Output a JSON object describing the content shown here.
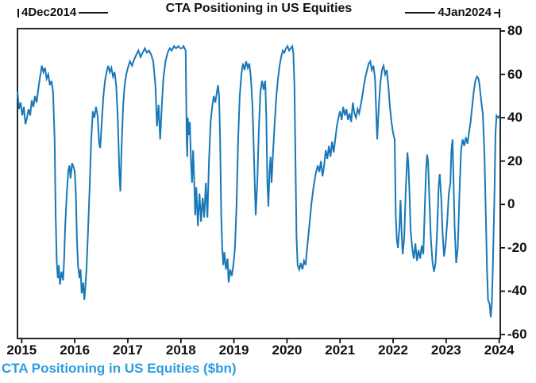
{
  "title": "CTA Positioning in US Equities",
  "markers": {
    "start": "4Dec2014",
    "end": "4Jan2024"
  },
  "caption": {
    "text": "CTA Positioning in US Equities ($bn)"
  },
  "colors": {
    "line": "#1878b8",
    "caption": "#2b9de0",
    "axis": "#111111"
  },
  "chart_data": {
    "type": "line",
    "title": "CTA Positioning in US Equities",
    "series_label": "CTA Positioning in US Equities ($bn)",
    "x_start_label": "4Dec2014",
    "x_end_label": "4Jan2024",
    "xlabel": "",
    "ylabel": "",
    "xlim": [
      2014.92,
      2024.02
    ],
    "ylim": [
      -60,
      80
    ],
    "x_ticks": [
      2015,
      2016,
      2017,
      2018,
      2019,
      2020,
      2021,
      2022,
      2023,
      2024
    ],
    "y_ticks": [
      80,
      60,
      40,
      20,
      0,
      -20,
      -40,
      -60
    ],
    "grid": false,
    "legend_position": "none",
    "points": [
      [
        2014.92,
        52
      ],
      [
        2014.95,
        44
      ],
      [
        2014.98,
        47
      ],
      [
        2015.01,
        41
      ],
      [
        2015.04,
        45
      ],
      [
        2015.07,
        37
      ],
      [
        2015.1,
        40
      ],
      [
        2015.13,
        44
      ],
      [
        2015.16,
        41
      ],
      [
        2015.19,
        48
      ],
      [
        2015.22,
        45
      ],
      [
        2015.25,
        50
      ],
      [
        2015.28,
        47
      ],
      [
        2015.31,
        53
      ],
      [
        2015.34,
        58
      ],
      [
        2015.38,
        64
      ],
      [
        2015.41,
        61
      ],
      [
        2015.44,
        63
      ],
      [
        2015.47,
        58
      ],
      [
        2015.5,
        60
      ],
      [
        2015.53,
        55
      ],
      [
        2015.56,
        57
      ],
      [
        2015.59,
        52
      ],
      [
        2015.62,
        30
      ],
      [
        2015.64,
        -5
      ],
      [
        2015.66,
        -26
      ],
      [
        2015.68,
        -34
      ],
      [
        2015.7,
        -28
      ],
      [
        2015.72,
        -37
      ],
      [
        2015.75,
        -31
      ],
      [
        2015.78,
        -35
      ],
      [
        2015.8,
        -25
      ],
      [
        2015.82,
        -10
      ],
      [
        2015.85,
        5
      ],
      [
        2015.88,
        16
      ],
      [
        2015.9,
        18
      ],
      [
        2015.92,
        12
      ],
      [
        2015.95,
        19
      ],
      [
        2015.98,
        17
      ],
      [
        2016.0,
        15
      ],
      [
        2016.02,
        5
      ],
      [
        2016.04,
        -15
      ],
      [
        2016.06,
        -28
      ],
      [
        2016.09,
        -34
      ],
      [
        2016.11,
        -30
      ],
      [
        2016.13,
        -41
      ],
      [
        2016.16,
        -36
      ],
      [
        2016.18,
        -44
      ],
      [
        2016.2,
        -38
      ],
      [
        2016.22,
        -30
      ],
      [
        2016.25,
        -12
      ],
      [
        2016.28,
        8
      ],
      [
        2016.31,
        30
      ],
      [
        2016.34,
        43
      ],
      [
        2016.37,
        40
      ],
      [
        2016.4,
        45
      ],
      [
        2016.43,
        41
      ],
      [
        2016.46,
        28
      ],
      [
        2016.48,
        26
      ],
      [
        2016.51,
        38
      ],
      [
        2016.54,
        50
      ],
      [
        2016.57,
        57
      ],
      [
        2016.6,
        61
      ],
      [
        2016.63,
        64
      ],
      [
        2016.66,
        61
      ],
      [
        2016.69,
        63
      ],
      [
        2016.72,
        59
      ],
      [
        2016.75,
        61
      ],
      [
        2016.78,
        55
      ],
      [
        2016.81,
        40
      ],
      [
        2016.84,
        15
      ],
      [
        2016.86,
        6
      ],
      [
        2016.88,
        25
      ],
      [
        2016.91,
        45
      ],
      [
        2016.94,
        55
      ],
      [
        2016.97,
        60
      ],
      [
        2017.0,
        63
      ],
      [
        2017.04,
        66
      ],
      [
        2017.08,
        64
      ],
      [
        2017.12,
        67
      ],
      [
        2017.16,
        69
      ],
      [
        2017.2,
        71
      ],
      [
        2017.24,
        68
      ],
      [
        2017.28,
        70
      ],
      [
        2017.32,
        72
      ],
      [
        2017.36,
        70
      ],
      [
        2017.4,
        71
      ],
      [
        2017.44,
        69
      ],
      [
        2017.48,
        66
      ],
      [
        2017.52,
        55
      ],
      [
        2017.55,
        36
      ],
      [
        2017.58,
        46
      ],
      [
        2017.61,
        30
      ],
      [
        2017.64,
        45
      ],
      [
        2017.67,
        58
      ],
      [
        2017.71,
        66
      ],
      [
        2017.75,
        70
      ],
      [
        2017.79,
        72
      ],
      [
        2017.83,
        71
      ],
      [
        2017.87,
        73
      ],
      [
        2017.91,
        72
      ],
      [
        2017.95,
        73
      ],
      [
        2017.99,
        72
      ],
      [
        2018.02,
        72
      ],
      [
        2018.05,
        73
      ],
      [
        2018.09,
        71
      ],
      [
        2018.11,
        30
      ],
      [
        2018.12,
        22
      ],
      [
        2018.13,
        40
      ],
      [
        2018.15,
        32
      ],
      [
        2018.17,
        38
      ],
      [
        2018.19,
        20
      ],
      [
        2018.21,
        10
      ],
      [
        2018.23,
        25
      ],
      [
        2018.25,
        12
      ],
      [
        2018.27,
        -5
      ],
      [
        2018.29,
        8
      ],
      [
        2018.32,
        -10
      ],
      [
        2018.35,
        5
      ],
      [
        2018.38,
        -8
      ],
      [
        2018.41,
        3
      ],
      [
        2018.44,
        -6
      ],
      [
        2018.47,
        10
      ],
      [
        2018.5,
        -6
      ],
      [
        2018.53,
        20
      ],
      [
        2018.56,
        38
      ],
      [
        2018.59,
        45
      ],
      [
        2018.62,
        50
      ],
      [
        2018.65,
        47
      ],
      [
        2018.68,
        52
      ],
      [
        2018.7,
        55
      ],
      [
        2018.72,
        50
      ],
      [
        2018.74,
        30
      ],
      [
        2018.76,
        -5
      ],
      [
        2018.78,
        -20
      ],
      [
        2018.8,
        -28
      ],
      [
        2018.82,
        -22
      ],
      [
        2018.85,
        -30
      ],
      [
        2018.88,
        -25
      ],
      [
        2018.9,
        -36
      ],
      [
        2018.93,
        -30
      ],
      [
        2018.96,
        -33
      ],
      [
        2018.99,
        -28
      ],
      [
        2019.02,
        -20
      ],
      [
        2019.05,
        0
      ],
      [
        2019.08,
        30
      ],
      [
        2019.11,
        50
      ],
      [
        2019.14,
        60
      ],
      [
        2019.17,
        65
      ],
      [
        2019.2,
        62
      ],
      [
        2019.23,
        66
      ],
      [
        2019.26,
        63
      ],
      [
        2019.29,
        65
      ],
      [
        2019.32,
        58
      ],
      [
        2019.35,
        45
      ],
      [
        2019.38,
        20
      ],
      [
        2019.41,
        -5
      ],
      [
        2019.44,
        10
      ],
      [
        2019.47,
        35
      ],
      [
        2019.5,
        52
      ],
      [
        2019.53,
        57
      ],
      [
        2019.56,
        53
      ],
      [
        2019.59,
        57
      ],
      [
        2019.61,
        40
      ],
      [
        2019.63,
        10
      ],
      [
        2019.65,
        -1
      ],
      [
        2019.67,
        15
      ],
      [
        2019.69,
        22
      ],
      [
        2019.71,
        10
      ],
      [
        2019.74,
        25
      ],
      [
        2019.77,
        38
      ],
      [
        2019.8,
        50
      ],
      [
        2019.83,
        58
      ],
      [
        2019.86,
        64
      ],
      [
        2019.89,
        68
      ],
      [
        2019.92,
        71
      ],
      [
        2019.95,
        70
      ],
      [
        2019.98,
        72
      ],
      [
        2020.01,
        73
      ],
      [
        2020.04,
        71
      ],
      [
        2020.07,
        72
      ],
      [
        2020.1,
        73
      ],
      [
        2020.12,
        70
      ],
      [
        2020.14,
        55
      ],
      [
        2020.16,
        20
      ],
      [
        2020.18,
        -15
      ],
      [
        2020.2,
        -28
      ],
      [
        2020.23,
        -30
      ],
      [
        2020.26,
        -27
      ],
      [
        2020.29,
        -30
      ],
      [
        2020.32,
        -26
      ],
      [
        2020.35,
        -28
      ],
      [
        2020.38,
        -20
      ],
      [
        2020.42,
        -10
      ],
      [
        2020.46,
        0
      ],
      [
        2020.5,
        8
      ],
      [
        2020.54,
        14
      ],
      [
        2020.58,
        18
      ],
      [
        2020.61,
        15
      ],
      [
        2020.64,
        20
      ],
      [
        2020.67,
        13
      ],
      [
        2020.7,
        18
      ],
      [
        2020.73,
        25
      ],
      [
        2020.76,
        21
      ],
      [
        2020.79,
        27
      ],
      [
        2020.82,
        22
      ],
      [
        2020.85,
        29
      ],
      [
        2020.88,
        24
      ],
      [
        2020.91,
        30
      ],
      [
        2020.94,
        36
      ],
      [
        2020.97,
        40
      ],
      [
        2021.0,
        43
      ],
      [
        2021.03,
        39
      ],
      [
        2021.06,
        45
      ],
      [
        2021.09,
        41
      ],
      [
        2021.12,
        44
      ],
      [
        2021.15,
        39
      ],
      [
        2021.18,
        42
      ],
      [
        2021.21,
        38
      ],
      [
        2021.24,
        47
      ],
      [
        2021.27,
        42
      ],
      [
        2021.3,
        40
      ],
      [
        2021.33,
        44
      ],
      [
        2021.36,
        42
      ],
      [
        2021.39,
        46
      ],
      [
        2021.42,
        50
      ],
      [
        2021.45,
        55
      ],
      [
        2021.48,
        59
      ],
      [
        2021.51,
        62
      ],
      [
        2021.54,
        65
      ],
      [
        2021.57,
        66
      ],
      [
        2021.6,
        62
      ],
      [
        2021.63,
        64
      ],
      [
        2021.66,
        58
      ],
      [
        2021.7,
        30
      ],
      [
        2021.73,
        45
      ],
      [
        2021.76,
        56
      ],
      [
        2021.79,
        62
      ],
      [
        2021.82,
        64
      ],
      [
        2021.85,
        60
      ],
      [
        2021.88,
        62
      ],
      [
        2021.91,
        55
      ],
      [
        2021.94,
        45
      ],
      [
        2021.97,
        38
      ],
      [
        2022.0,
        33
      ],
      [
        2022.03,
        30
      ],
      [
        2022.05,
        -5
      ],
      [
        2022.07,
        -16
      ],
      [
        2022.09,
        -20
      ],
      [
        2022.12,
        -10
      ],
      [
        2022.14,
        2
      ],
      [
        2022.16,
        -12
      ],
      [
        2022.18,
        -23
      ],
      [
        2022.21,
        -15
      ],
      [
        2022.24,
        8
      ],
      [
        2022.27,
        24
      ],
      [
        2022.29,
        18
      ],
      [
        2022.31,
        5
      ],
      [
        2022.33,
        -12
      ],
      [
        2022.36,
        -20
      ],
      [
        2022.39,
        -25
      ],
      [
        2022.42,
        -18
      ],
      [
        2022.45,
        -26
      ],
      [
        2022.48,
        -21
      ],
      [
        2022.51,
        -25
      ],
      [
        2022.54,
        -19
      ],
      [
        2022.57,
        -23
      ],
      [
        2022.6,
        0
      ],
      [
        2022.62,
        15
      ],
      [
        2022.64,
        23
      ],
      [
        2022.66,
        20
      ],
      [
        2022.68,
        5
      ],
      [
        2022.71,
        -15
      ],
      [
        2022.74,
        -26
      ],
      [
        2022.77,
        -31
      ],
      [
        2022.8,
        -27
      ],
      [
        2022.83,
        -12
      ],
      [
        2022.86,
        9
      ],
      [
        2022.88,
        14
      ],
      [
        2022.91,
        2
      ],
      [
        2022.93,
        -12
      ],
      [
        2022.96,
        -24
      ],
      [
        2022.99,
        -18
      ],
      [
        2023.02,
        -8
      ],
      [
        2023.05,
        5
      ],
      [
        2023.08,
        10
      ],
      [
        2023.1,
        25
      ],
      [
        2023.12,
        30
      ],
      [
        2023.14,
        10
      ],
      [
        2023.16,
        -10
      ],
      [
        2023.19,
        -27
      ],
      [
        2023.22,
        -20
      ],
      [
        2023.25,
        5
      ],
      [
        2023.28,
        25
      ],
      [
        2023.31,
        30
      ],
      [
        2023.34,
        27
      ],
      [
        2023.37,
        31
      ],
      [
        2023.4,
        28
      ],
      [
        2023.43,
        33
      ],
      [
        2023.46,
        38
      ],
      [
        2023.49,
        45
      ],
      [
        2023.52,
        52
      ],
      [
        2023.55,
        57
      ],
      [
        2023.58,
        59
      ],
      [
        2023.61,
        58
      ],
      [
        2023.63,
        55
      ],
      [
        2023.66,
        48
      ],
      [
        2023.69,
        42
      ],
      [
        2023.72,
        24
      ],
      [
        2023.75,
        -8
      ],
      [
        2023.77,
        -30
      ],
      [
        2023.79,
        -44
      ],
      [
        2023.82,
        -46
      ],
      [
        2023.84,
        -52
      ],
      [
        2023.86,
        -46
      ],
      [
        2023.88,
        -30
      ],
      [
        2023.91,
        5
      ],
      [
        2023.93,
        33
      ],
      [
        2023.95,
        41
      ],
      [
        2023.98,
        40
      ],
      [
        2024.01,
        41
      ]
    ]
  }
}
